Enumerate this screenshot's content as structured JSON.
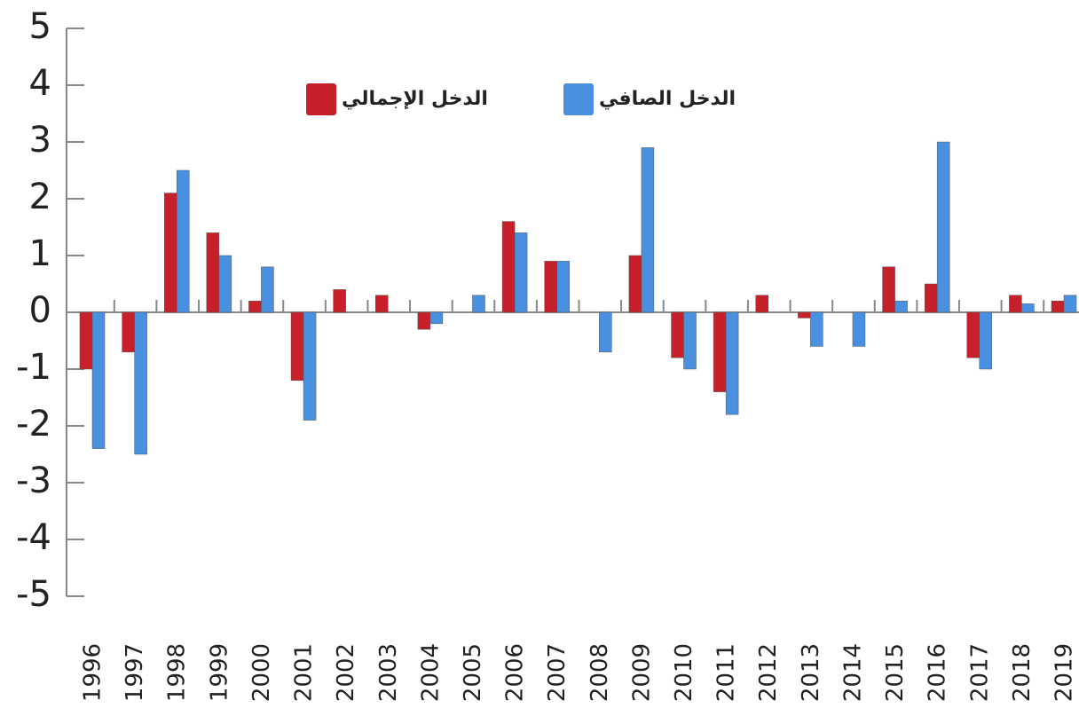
{
  "chart_data": {
    "type": "bar",
    "categories": [
      "1996",
      "1997",
      "1998",
      "1999",
      "2000",
      "2001",
      "2002",
      "2003",
      "2004",
      "2005",
      "2006",
      "2007",
      "2008",
      "2009",
      "2010",
      "2011",
      "2012",
      "2013",
      "2014",
      "2015",
      "2016",
      "2017",
      "2018",
      "2019"
    ],
    "series": [
      {
        "name": "الدخل الإجمالي",
        "color": "#c8202a",
        "values": [
          -1,
          -0.7,
          2.1,
          1.4,
          0.2,
          -1.2,
          0.4,
          0.3,
          -0.3,
          0,
          1.6,
          0.9,
          0,
          1.0,
          -0.8,
          -1.4,
          0.3,
          -0.1,
          0,
          0.8,
          0.5,
          -0.8,
          0.3,
          0.2
        ]
      },
      {
        "name": "الدخل الصافي",
        "color": "#4a90e0",
        "values": [
          -2.4,
          -2.5,
          2.5,
          1.0,
          0.8,
          -1.9,
          0,
          0,
          -0.2,
          0.3,
          1.4,
          0.9,
          -0.7,
          2.9,
          -1.0,
          -1.8,
          0,
          -0.6,
          -0.6,
          0.2,
          3.0,
          -1.0,
          0.15,
          0.3
        ]
      }
    ],
    "ylim": [
      -5,
      5
    ],
    "yticks": [
      -5,
      -4,
      -3,
      -2,
      -1,
      0,
      1,
      2,
      3,
      4,
      5
    ],
    "legend": "top"
  }
}
